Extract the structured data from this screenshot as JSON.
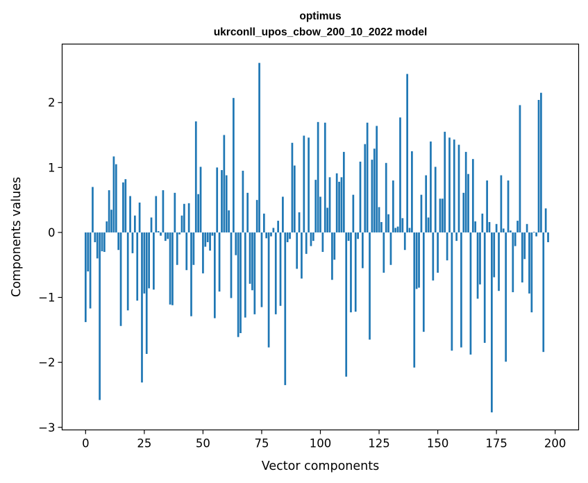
{
  "chart_data": {
    "type": "bar",
    "title": "optimus",
    "subtitle": "ukrconll_upos_cbow_200_10_2022 model",
    "xlabel": "Vector components",
    "ylabel": "Components values",
    "xlim": [
      -10,
      210
    ],
    "ylim": [
      -3.04,
      2.9
    ],
    "x_ticks": [
      0,
      25,
      50,
      75,
      100,
      125,
      150,
      175,
      200
    ],
    "y_ticks": [
      -3,
      -2,
      -1,
      0,
      1,
      2
    ],
    "y_tick_labels": [
      "−3",
      "−2",
      "−1",
      "0",
      "1",
      "2"
    ],
    "bar_color": "#1f77b4",
    "grid": false,
    "legend": "none",
    "values": [
      -1.38,
      -0.6,
      -1.17,
      0.7,
      -0.15,
      -0.4,
      -2.58,
      -0.29,
      -0.3,
      0.17,
      0.65,
      0.35,
      1.17,
      1.05,
      -0.27,
      -1.44,
      0.77,
      0.82,
      -1.2,
      0.56,
      -0.32,
      0.26,
      -1.05,
      0.46,
      -2.31,
      -0.94,
      -1.87,
      -0.86,
      0.23,
      -0.88,
      0.56,
      0.02,
      -0.05,
      0.65,
      -0.13,
      -0.1,
      -1.11,
      -1.12,
      0.61,
      -0.5,
      -0.03,
      0.26,
      0.44,
      -0.58,
      0.45,
      -1.29,
      -0.5,
      1.71,
      0.59,
      1.01,
      -0.63,
      -0.22,
      -0.15,
      -0.28,
      -0.05,
      -1.32,
      1.0,
      -0.91,
      0.96,
      1.5,
      0.88,
      0.34,
      -1.01,
      2.07,
      -0.35,
      -1.61,
      -1.55,
      0.95,
      -1.31,
      0.61,
      -0.79,
      -0.89,
      -1.26,
      0.5,
      2.61,
      -1.15,
      0.29,
      -0.09,
      -1.77,
      -0.06,
      0.07,
      -1.26,
      0.18,
      -1.13,
      0.55,
      -2.35,
      -0.15,
      -0.1,
      1.38,
      1.03,
      -0.56,
      0.31,
      -0.71,
      1.49,
      -0.33,
      1.46,
      -0.21,
      -0.13,
      0.81,
      1.7,
      0.55,
      -0.3,
      1.69,
      0.38,
      0.85,
      -0.73,
      -0.42,
      0.91,
      0.78,
      0.85,
      1.24,
      -2.22,
      -0.13,
      -1.23,
      0.58,
      -1.22,
      -0.1,
      1.09,
      -0.55,
      1.36,
      1.69,
      -1.65,
      1.12,
      1.29,
      1.64,
      0.39,
      0.16,
      -0.62,
      1.07,
      0.28,
      -0.5,
      0.8,
      0.07,
      0.09,
      1.77,
      0.22,
      -0.27,
      2.44,
      0.07,
      1.25,
      -2.08,
      -0.87,
      -0.85,
      0.58,
      -1.53,
      0.88,
      0.23,
      1.4,
      -0.74,
      1.01,
      -0.62,
      0.52,
      0.52,
      1.55,
      -0.43,
      1.46,
      -1.82,
      1.43,
      -0.13,
      1.35,
      -1.77,
      0.61,
      1.24,
      0.9,
      -1.88,
      1.13,
      0.17,
      -1.02,
      -0.8,
      0.29,
      -1.7,
      0.8,
      0.16,
      -2.77,
      -0.69,
      0.13,
      -0.9,
      0.88,
      0.06,
      -1.99,
      0.8,
      0.03,
      -0.92,
      -0.21,
      0.18,
      1.96,
      -0.77,
      -0.41,
      0.13,
      -0.94,
      -1.23,
      0.01,
      -0.06,
      2.04,
      2.15,
      -1.84,
      0.37,
      -0.15
    ]
  }
}
